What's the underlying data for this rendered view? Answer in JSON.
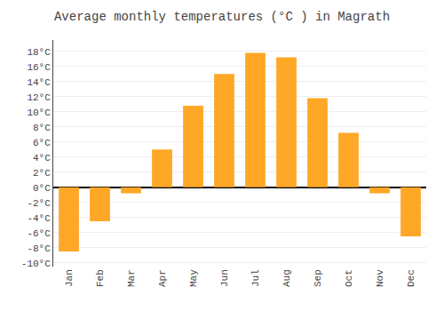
{
  "chart_data": {
    "type": "bar",
    "title": "Average monthly temperatures (°C ) in Magrath",
    "categories": [
      "Jan",
      "Feb",
      "Mar",
      "Apr",
      "May",
      "Jun",
      "Jul",
      "Aug",
      "Sep",
      "Oct",
      "Nov",
      "Dec"
    ],
    "values": [
      -8.5,
      -4.5,
      -0.8,
      5.0,
      10.8,
      15.0,
      17.8,
      17.2,
      11.8,
      7.2,
      -0.8,
      -6.5
    ],
    "color": "#FFA726",
    "ylim": [
      -10.5,
      19.5
    ],
    "yticks": [
      {
        "value": -10,
        "label": "-10°C"
      },
      {
        "value": -8,
        "label": "-8°C"
      },
      {
        "value": -6,
        "label": "-6°C"
      },
      {
        "value": -4,
        "label": "-4°C"
      },
      {
        "value": -2,
        "label": "-2°C"
      },
      {
        "value": 0,
        "label": "0°C"
      },
      {
        "value": 2,
        "label": "2°C"
      },
      {
        "value": 4,
        "label": "4°C"
      },
      {
        "value": 6,
        "label": "6°C"
      },
      {
        "value": 8,
        "label": "8°C"
      },
      {
        "value": 10,
        "label": "10°C"
      },
      {
        "value": 12,
        "label": "12°C"
      },
      {
        "value": 14,
        "label": "14°C"
      },
      {
        "value": 16,
        "label": "16°C"
      },
      {
        "value": 18,
        "label": "18°C"
      }
    ],
    "grid": true
  }
}
